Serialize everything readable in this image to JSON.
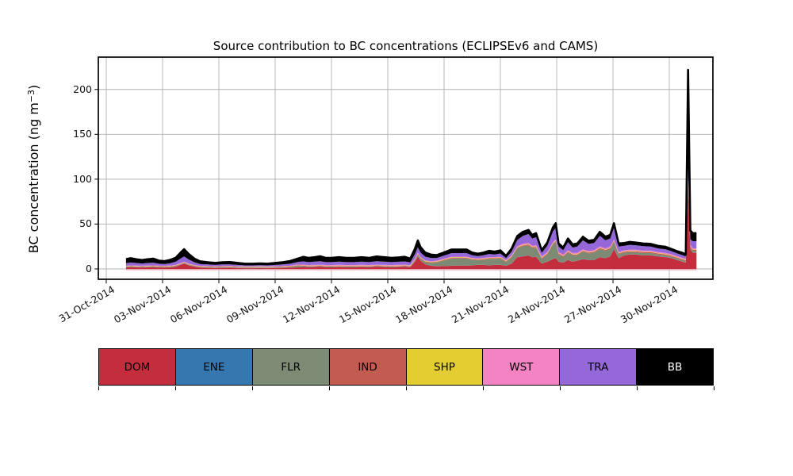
{
  "title": "Source contribution to BC concentrations (ECLIPSEv6 and CAMS)",
  "y_axis": {
    "label_prefix": "BC concentration (ng m",
    "label_sup": "−3",
    "label_suffix": ")",
    "ticks": [
      "0",
      "50",
      "100",
      "150",
      "200"
    ],
    "tick_values": [
      0,
      50,
      100,
      150,
      200
    ]
  },
  "x_axis": {
    "ticks": [
      "31-Oct-2014",
      "03-Nov-2014",
      "06-Nov-2014",
      "09-Nov-2014",
      "12-Nov-2014",
      "15-Nov-2014",
      "18-Nov-2014",
      "21-Nov-2014",
      "24-Nov-2014",
      "27-Nov-2014",
      "30-Nov-2014"
    ],
    "tick_days": [
      0,
      3,
      6,
      9,
      12,
      15,
      18,
      21,
      24,
      27,
      30
    ]
  },
  "legend": {
    "items": [
      {
        "label": "DOM",
        "color": "#c42d3c",
        "text_color": "#000000"
      },
      {
        "label": "ENE",
        "color": "#3578b0",
        "text_color": "#000000"
      },
      {
        "label": "FLR",
        "color": "#7d8b74",
        "text_color": "#000000"
      },
      {
        "label": "IND",
        "color": "#c25b50",
        "text_color": "#000000"
      },
      {
        "label": "SHP",
        "color": "#e3cd30",
        "text_color": "#000000"
      },
      {
        "label": "WST",
        "color": "#f383c3",
        "text_color": "#000000"
      },
      {
        "label": "TRA",
        "color": "#9468d8",
        "text_color": "#000000"
      },
      {
        "label": "BB",
        "color": "#000000",
        "text_color": "#ffffff"
      }
    ]
  },
  "chart_data": {
    "type": "area",
    "stacked": true,
    "title": "Source contribution to BC concentrations (ECLIPSEv6 and CAMS)",
    "xlabel": "",
    "ylabel": "BC concentration (ng m−3)",
    "x_unit": "days since 31-Oct-2014",
    "x_tick_labels": [
      "31-Oct-2014",
      "03-Nov-2014",
      "06-Nov-2014",
      "09-Nov-2014",
      "12-Nov-2014",
      "15-Nov-2014",
      "18-Nov-2014",
      "21-Nov-2014",
      "24-Nov-2014",
      "27-Nov-2014",
      "30-Nov-2014"
    ],
    "ylim": [
      -11.5,
      236
    ],
    "xlim_days": [
      -0.42,
      32.32
    ],
    "grid": true,
    "legend_position": "bottom-strip",
    "total_line_color": "#000000",
    "x": [
      1.05,
      1.3,
      1.6,
      1.9,
      2.2,
      2.5,
      2.8,
      3.1,
      3.4,
      3.7,
      3.95,
      4.15,
      4.4,
      4.7,
      5.0,
      5.4,
      5.8,
      6.2,
      6.6,
      7.0,
      7.4,
      7.8,
      8.2,
      8.6,
      9.0,
      9.4,
      9.8,
      10.2,
      10.5,
      10.8,
      11.1,
      11.4,
      11.7,
      12.0,
      12.4,
      12.8,
      13.2,
      13.6,
      14.0,
      14.4,
      14.8,
      15.2,
      15.6,
      15.9,
      16.2,
      16.45,
      16.6,
      16.75,
      17.0,
      17.3,
      17.6,
      18.0,
      18.4,
      18.8,
      19.2,
      19.5,
      19.8,
      20.1,
      20.4,
      20.7,
      21.0,
      21.3,
      21.6,
      21.9,
      22.2,
      22.5,
      22.7,
      22.9,
      23.2,
      23.5,
      23.8,
      23.95,
      24.1,
      24.35,
      24.6,
      24.85,
      25.1,
      25.4,
      25.7,
      26.0,
      26.3,
      26.6,
      26.85,
      27.05,
      27.3,
      27.6,
      27.9,
      28.2,
      28.6,
      29.0,
      29.4,
      29.8,
      30.1,
      30.4,
      30.7,
      30.88,
      31.0,
      31.12,
      31.25,
      31.45
    ],
    "series": [
      {
        "name": "DOM",
        "color": "#c42d3c",
        "values": [
          1.5,
          2.0,
          1.8,
          1.6,
          1.8,
          2.0,
          1.6,
          1.5,
          1.8,
          2.5,
          4.5,
          6.0,
          4.0,
          2.5,
          1.5,
          1.2,
          1.0,
          1.2,
          1.3,
          1.0,
          0.8,
          0.8,
          0.9,
          0.8,
          1.0,
          1.2,
          1.5,
          1.8,
          2.2,
          2.0,
          2.2,
          2.4,
          2.0,
          2.0,
          2.2,
          2.0,
          2.0,
          2.2,
          2.0,
          2.4,
          2.2,
          2.0,
          2.2,
          2.4,
          2.0,
          8.0,
          14.0,
          9.0,
          5.0,
          3.5,
          3.0,
          3.2,
          3.5,
          3.5,
          3.5,
          4.0,
          4.5,
          4.5,
          4.0,
          4.5,
          4.5,
          3.5,
          6.0,
          13.0,
          14.0,
          15.0,
          13.0,
          13.5,
          6.0,
          8.0,
          11.0,
          12.0,
          8.0,
          7.0,
          10.0,
          8.0,
          9.0,
          11.0,
          10.0,
          10.0,
          13.0,
          12.0,
          14.0,
          22.0,
          12.0,
          15.0,
          16.0,
          16.0,
          15.0,
          15.0,
          14.0,
          13.0,
          12.0,
          10.0,
          8.0,
          7.0,
          95.0,
          22.0,
          18.0,
          18.0
        ]
      },
      {
        "name": "ENE",
        "color": "#3578b0",
        "values": [
          0.2,
          0.2,
          0.2,
          0.2,
          0.2,
          0.2,
          0.2,
          0.2,
          0.2,
          0.2,
          0.2,
          0.2,
          0.2,
          0.2,
          0.2,
          0.2,
          0.2,
          0.2,
          0.2,
          0.2,
          0.2,
          0.2,
          0.2,
          0.2,
          0.2,
          0.2,
          0.2,
          0.2,
          0.2,
          0.2,
          0.2,
          0.2,
          0.2,
          0.2,
          0.2,
          0.2,
          0.2,
          0.2,
          0.2,
          0.2,
          0.2,
          0.2,
          0.2,
          0.2,
          0.2,
          0.2,
          0.2,
          0.2,
          0.2,
          0.2,
          0.2,
          0.2,
          0.2,
          0.2,
          0.2,
          0.2,
          0.2,
          0.2,
          0.2,
          0.2,
          0.2,
          0.2,
          0.2,
          0.2,
          0.2,
          0.2,
          0.2,
          0.2,
          0.2,
          0.2,
          0.2,
          0.2,
          0.2,
          0.2,
          0.2,
          0.2,
          0.2,
          0.2,
          0.2,
          0.2,
          0.2,
          0.2,
          0.2,
          0.2,
          0.2,
          0.2,
          0.2,
          0.2,
          0.2,
          0.2,
          0.2,
          0.2,
          0.2,
          0.2,
          0.2,
          0.2,
          0.3,
          0.2,
          0.2,
          0.2
        ]
      },
      {
        "name": "FLR",
        "color": "#7d8b74",
        "values": [
          0.4,
          0.4,
          0.4,
          0.4,
          0.4,
          0.4,
          0.4,
          0.4,
          0.4,
          0.4,
          0.4,
          0.4,
          0.4,
          0.4,
          0.4,
          0.4,
          0.4,
          0.4,
          0.4,
          0.4,
          0.4,
          0.4,
          0.4,
          0.4,
          0.4,
          0.4,
          0.5,
          1.5,
          0.8,
          0.5,
          0.5,
          0.5,
          0.5,
          0.5,
          0.5,
          0.5,
          0.5,
          0.5,
          0.5,
          0.5,
          0.5,
          0.5,
          0.5,
          0.5,
          0.5,
          1.5,
          2.0,
          2.0,
          2.5,
          3.0,
          4.0,
          6.0,
          8.0,
          8.0,
          8.0,
          6.0,
          5.0,
          5.5,
          7.0,
          6.5,
          7.0,
          4.0,
          7.0,
          10.0,
          11.0,
          11.0,
          10.0,
          10.0,
          5.0,
          8.0,
          16.0,
          18.0,
          8.0,
          6.0,
          8.0,
          7.0,
          6.0,
          8.0,
          7.0,
          8.0,
          9.0,
          8.0,
          8.0,
          8.0,
          4.0,
          3.0,
          2.5,
          2.5,
          2.5,
          2.5,
          2.0,
          2.0,
          1.5,
          1.5,
          1.5,
          1.5,
          3.0,
          2.0,
          2.0,
          2.0
        ]
      },
      {
        "name": "IND",
        "color": "#c25b50",
        "values": [
          0.5,
          0.5,
          0.5,
          0.5,
          0.5,
          0.5,
          0.5,
          0.5,
          0.5,
          0.5,
          0.5,
          0.5,
          0.5,
          0.5,
          0.5,
          0.5,
          0.5,
          0.5,
          0.5,
          0.5,
          0.5,
          0.5,
          0.5,
          0.5,
          0.5,
          0.5,
          0.5,
          0.5,
          0.5,
          0.5,
          0.5,
          0.5,
          0.5,
          0.5,
          0.5,
          0.5,
          0.5,
          0.5,
          0.5,
          0.5,
          0.5,
          0.5,
          0.5,
          0.5,
          0.5,
          0.7,
          0.7,
          0.7,
          0.7,
          0.7,
          0.7,
          0.7,
          0.7,
          0.7,
          0.7,
          0.7,
          0.7,
          0.7,
          0.7,
          0.7,
          0.7,
          0.7,
          0.7,
          0.7,
          1.0,
          1.0,
          1.0,
          1.0,
          1.0,
          1.0,
          1.0,
          1.0,
          1.0,
          1.0,
          1.0,
          1.0,
          1.0,
          1.0,
          1.0,
          1.0,
          1.0,
          1.0,
          1.0,
          1.0,
          1.0,
          1.0,
          1.0,
          1.0,
          1.0,
          1.0,
          1.0,
          1.0,
          1.0,
          1.0,
          1.0,
          1.0,
          1.0,
          1.0,
          1.0,
          1.0
        ]
      },
      {
        "name": "SHP",
        "color": "#e3cd30",
        "values": [
          0.4,
          0.4,
          0.4,
          0.4,
          0.4,
          0.4,
          0.4,
          0.4,
          0.4,
          0.4,
          0.4,
          0.4,
          0.4,
          0.4,
          0.4,
          0.4,
          0.4,
          0.4,
          0.4,
          0.4,
          0.4,
          0.4,
          0.4,
          0.4,
          0.4,
          0.4,
          0.4,
          0.4,
          0.4,
          0.4,
          0.4,
          0.4,
          0.4,
          0.4,
          0.4,
          0.4,
          0.4,
          0.4,
          0.4,
          0.4,
          0.4,
          0.4,
          0.4,
          0.4,
          0.4,
          0.5,
          0.5,
          0.5,
          0.5,
          0.5,
          0.5,
          0.5,
          0.5,
          0.5,
          0.5,
          0.5,
          0.5,
          0.5,
          0.5,
          0.5,
          0.5,
          0.5,
          0.5,
          0.5,
          0.5,
          0.5,
          0.5,
          0.5,
          0.5,
          0.5,
          0.5,
          0.5,
          0.5,
          0.5,
          0.5,
          0.5,
          0.5,
          0.5,
          0.5,
          0.5,
          0.5,
          0.5,
          0.5,
          0.5,
          0.5,
          0.5,
          0.5,
          0.5,
          0.5,
          0.5,
          0.5,
          0.5,
          0.5,
          0.5,
          0.5,
          0.5,
          0.5,
          0.5,
          0.5,
          0.5
        ]
      },
      {
        "name": "WST",
        "color": "#f383c3",
        "values": [
          0.5,
          0.5,
          0.5,
          0.5,
          0.5,
          0.5,
          0.5,
          0.5,
          0.5,
          0.5,
          0.5,
          0.5,
          0.5,
          0.5,
          0.5,
          0.5,
          0.5,
          0.5,
          0.5,
          0.5,
          0.5,
          0.5,
          0.5,
          0.5,
          0.5,
          0.5,
          0.5,
          0.5,
          0.8,
          0.8,
          0.8,
          0.8,
          0.8,
          0.8,
          0.8,
          0.8,
          0.8,
          0.8,
          0.8,
          0.8,
          0.8,
          0.8,
          0.8,
          0.8,
          0.8,
          0.8,
          0.8,
          0.8,
          0.8,
          0.8,
          0.8,
          0.8,
          0.8,
          0.8,
          0.8,
          0.8,
          0.8,
          0.8,
          0.8,
          0.8,
          0.8,
          0.8,
          0.8,
          0.8,
          1.2,
          1.2,
          1.2,
          1.2,
          1.2,
          1.2,
          1.2,
          1.2,
          1.2,
          1.2,
          1.2,
          1.2,
          1.2,
          1.2,
          1.2,
          1.2,
          1.2,
          1.2,
          1.2,
          1.2,
          1.2,
          1.2,
          1.2,
          1.2,
          1.2,
          1.2,
          1.2,
          1.2,
          1.2,
          1.2,
          1.2,
          1.2,
          2.0,
          1.2,
          1.2,
          1.2
        ]
      },
      {
        "name": "TRA",
        "color": "#9468d8",
        "values": [
          3.0,
          3.2,
          2.8,
          2.5,
          2.8,
          3.0,
          2.2,
          2.0,
          2.5,
          3.5,
          5.0,
          6.0,
          4.5,
          3.0,
          2.0,
          1.8,
          1.5,
          1.8,
          1.8,
          1.5,
          1.2,
          1.2,
          1.3,
          1.2,
          1.5,
          1.8,
          2.2,
          2.8,
          3.5,
          3.2,
          3.5,
          3.8,
          3.2,
          3.2,
          3.5,
          3.2,
          3.2,
          3.5,
          3.2,
          3.8,
          3.5,
          3.2,
          3.4,
          3.6,
          3.0,
          5.0,
          6.0,
          5.0,
          4.0,
          3.5,
          3.0,
          3.5,
          4.0,
          4.0,
          4.0,
          3.0,
          2.5,
          3.0,
          3.5,
          3.0,
          3.5,
          2.5,
          4.0,
          7.0,
          9.0,
          10.0,
          8.0,
          9.0,
          4.0,
          7.0,
          12.0,
          13.0,
          6.0,
          5.0,
          9.0,
          6.0,
          7.0,
          10.0,
          8.0,
          8.0,
          12.0,
          9.0,
          9.0,
          13.0,
          6.0,
          5.0,
          5.5,
          5.0,
          5.0,
          4.5,
          4.0,
          4.0,
          3.5,
          3.0,
          3.0,
          2.5,
          10.0,
          6.0,
          8.0,
          8.0
        ]
      },
      {
        "name": "BB",
        "color": "#000000",
        "values": [
          4.5,
          4.8,
          4.2,
          3.8,
          4.2,
          4.5,
          3.5,
          3.2,
          3.8,
          4.5,
          6.5,
          8.0,
          6.0,
          4.0,
          3.0,
          2.5,
          2.2,
          2.5,
          2.6,
          2.2,
          1.8,
          1.8,
          2.0,
          1.8,
          2.2,
          2.5,
          3.0,
          3.8,
          5.0,
          4.7,
          5.0,
          5.5,
          4.7,
          4.7,
          5.0,
          4.7,
          4.7,
          5.0,
          4.7,
          5.3,
          5.0,
          4.7,
          4.9,
          5.1,
          4.2,
          6.0,
          7.5,
          6.0,
          4.5,
          3.8,
          3.2,
          3.5,
          4.0,
          4.0,
          4.0,
          3.0,
          2.8,
          3.0,
          3.5,
          3.2,
          3.5,
          2.5,
          3.5,
          4.5,
          4.5,
          4.5,
          4.0,
          4.5,
          3.0,
          3.5,
          4.5,
          5.0,
          3.5,
          3.0,
          4.0,
          3.5,
          3.5,
          4.0,
          3.5,
          3.5,
          4.5,
          4.0,
          4.0,
          5.0,
          3.5,
          3.0,
          3.2,
          3.0,
          3.0,
          3.0,
          2.8,
          2.8,
          2.5,
          2.5,
          2.5,
          2.2,
          110.0,
          10.0,
          9.0,
          9.0
        ]
      }
    ]
  }
}
